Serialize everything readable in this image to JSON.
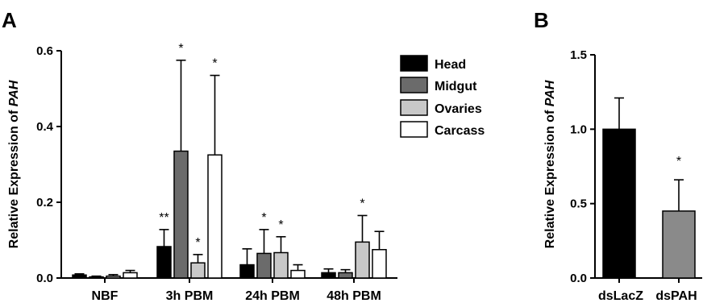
{
  "figure": {
    "panels": [
      "A",
      "B"
    ]
  },
  "chart_data": [
    {
      "panel": "A",
      "type": "bar",
      "title": "",
      "xlabel": "",
      "ylabel_prefix": "Relative Expression of ",
      "ylabel_gene": "PAH",
      "ylim": [
        0,
        0.6
      ],
      "yticks": [
        "0.0",
        "0.2",
        "0.4",
        "0.6"
      ],
      "ytick_values": [
        0,
        0.2,
        0.4,
        0.6
      ],
      "grid": false,
      "legend_position": "top-right",
      "categories": [
        "NBF",
        "3h PBM",
        "24h PBM",
        "48h PBM"
      ],
      "series": [
        {
          "name": "Head",
          "color": "#000000",
          "values": [
            0.008,
            0.083,
            0.035,
            0.014
          ],
          "errors": [
            0.003,
            0.045,
            0.042,
            0.01
          ],
          "significance": [
            "",
            "**",
            "",
            ""
          ]
        },
        {
          "name": "Midgut",
          "color": "#6b6b6b",
          "values": [
            0.003,
            0.335,
            0.065,
            0.014
          ],
          "errors": [
            0.002,
            0.24,
            0.063,
            0.008
          ],
          "significance": [
            "",
            "*",
            "*",
            ""
          ]
        },
        {
          "name": "Ovaries",
          "color": "#c8c8c8",
          "values": [
            0.005,
            0.04,
            0.067,
            0.095
          ],
          "errors": [
            0.004,
            0.022,
            0.042,
            0.07
          ],
          "significance": [
            "",
            "*",
            "*",
            "*"
          ]
        },
        {
          "name": "Carcass",
          "color": "#ffffff",
          "values": [
            0.014,
            0.325,
            0.02,
            0.075
          ],
          "errors": [
            0.006,
            0.21,
            0.015,
            0.048
          ],
          "significance": [
            "",
            "*",
            "",
            ""
          ]
        }
      ]
    },
    {
      "panel": "B",
      "type": "bar",
      "title": "",
      "xlabel": "",
      "ylabel_prefix": "Relative Expression of ",
      "ylabel_gene": "PAH",
      "ylim": [
        0,
        1.5
      ],
      "yticks": [
        "0.0",
        "0.5",
        "1.0",
        "1.5"
      ],
      "ytick_values": [
        0,
        0.5,
        1.0,
        1.5
      ],
      "grid": false,
      "categories": [
        "dsLacZ",
        "dsPAH"
      ],
      "values": [
        1.0,
        0.45
      ],
      "errors": [
        0.21,
        0.21
      ],
      "colors": [
        "#000000",
        "#8a8a8a"
      ],
      "significance": [
        "",
        "*"
      ]
    }
  ]
}
